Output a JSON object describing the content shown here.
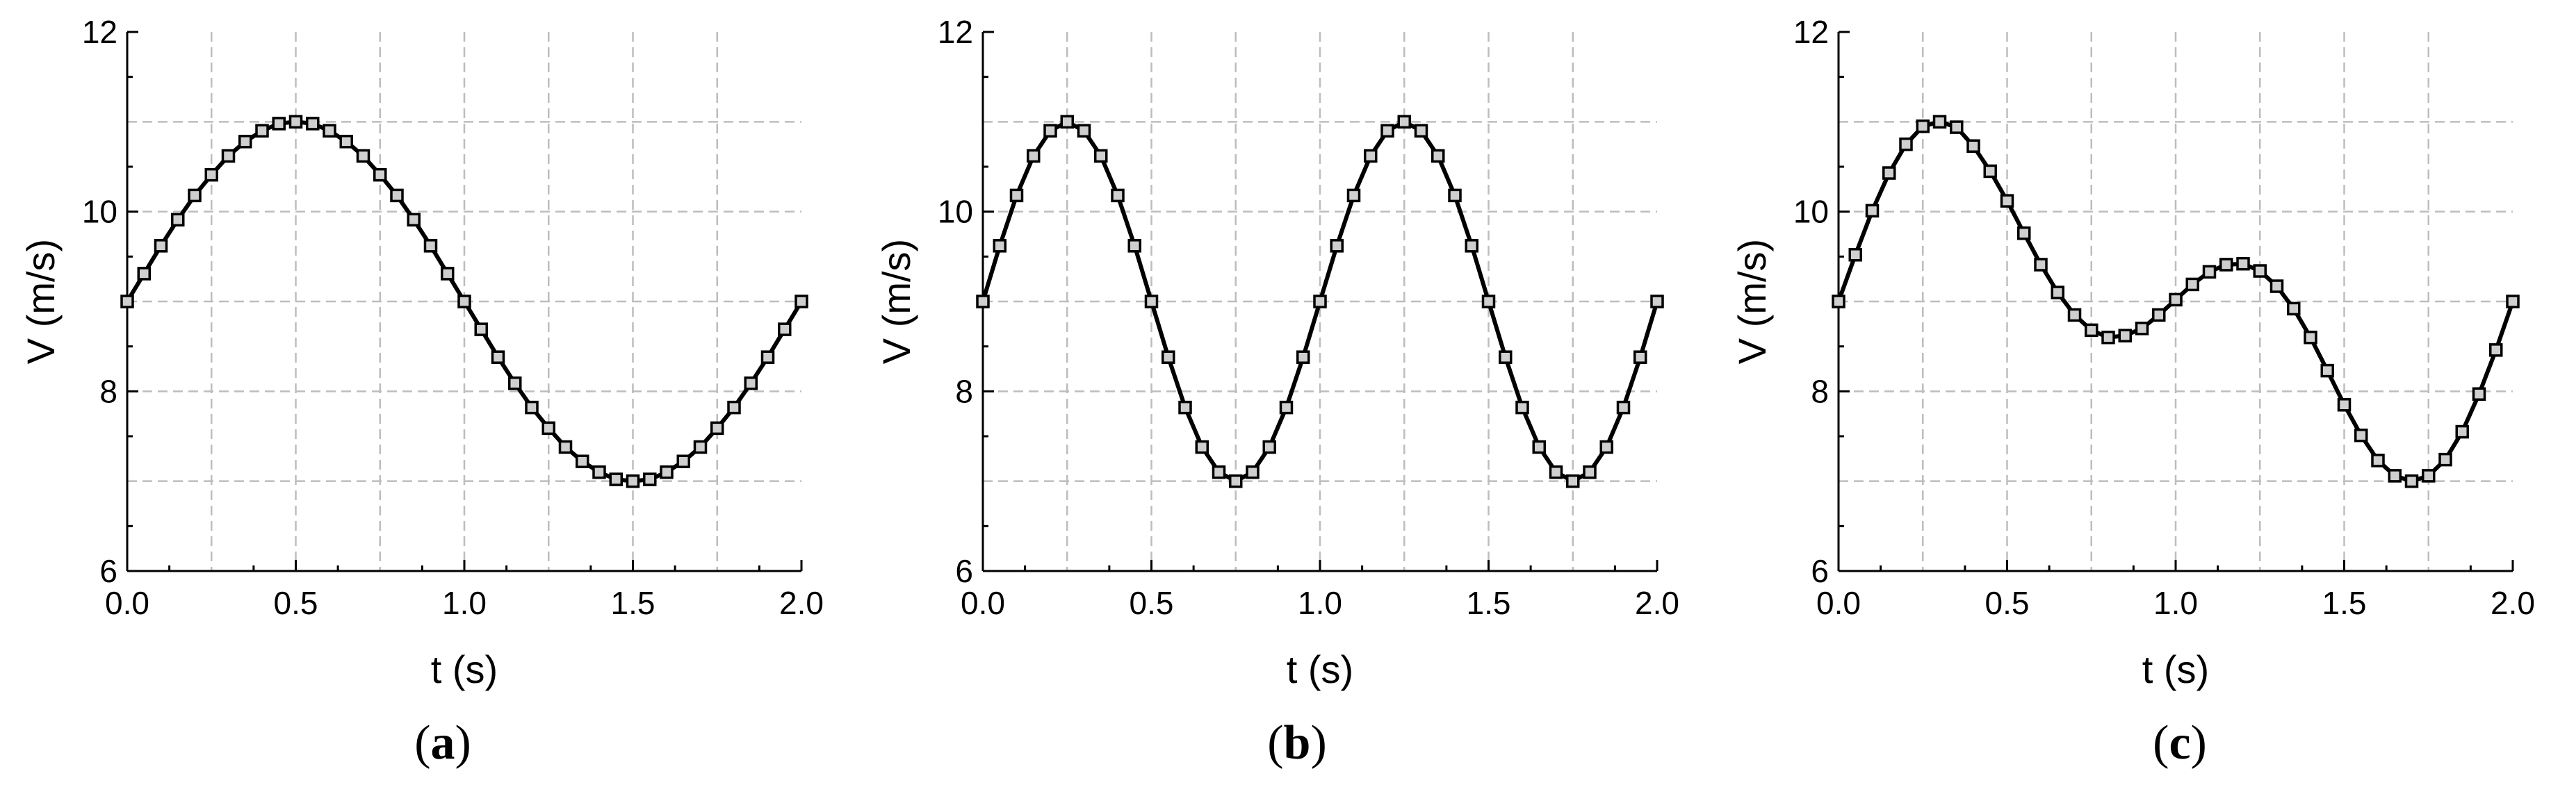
{
  "chart_data": [
    {
      "type": "line",
      "panel_label": "(a)",
      "panel_letter": "a",
      "xlabel": "t (s)",
      "ylabel": "V (m/s)",
      "xlim": [
        0.0,
        2.0
      ],
      "ylim": [
        6,
        12
      ],
      "xticks": [
        "0.0",
        "0.5",
        "1.0",
        "1.5",
        "2.0"
      ],
      "yticks": [
        "6",
        "8",
        "10",
        "12"
      ],
      "grid": true,
      "series": [
        {
          "marker": "square",
          "x": [
            0.0,
            0.05,
            0.1,
            0.15,
            0.2,
            0.25,
            0.3,
            0.35,
            0.4,
            0.45,
            0.5,
            0.55,
            0.6,
            0.65,
            0.7,
            0.75,
            0.8,
            0.85,
            0.9,
            0.95,
            1.0,
            1.05,
            1.1,
            1.15,
            1.2,
            1.25,
            1.3,
            1.35,
            1.4,
            1.45,
            1.5,
            1.55,
            1.6,
            1.65,
            1.7,
            1.75,
            1.8,
            1.85,
            1.9,
            1.95,
            2.0
          ],
          "y": [
            9.0,
            9.31,
            9.62,
            9.91,
            10.18,
            10.41,
            10.62,
            10.78,
            10.9,
            10.98,
            11.0,
            10.98,
            10.9,
            10.78,
            10.62,
            10.41,
            10.18,
            9.91,
            9.62,
            9.31,
            9.0,
            8.69,
            8.38,
            8.09,
            7.82,
            7.59,
            7.38,
            7.22,
            7.1,
            7.02,
            7.0,
            7.02,
            7.1,
            7.22,
            7.38,
            7.59,
            7.82,
            8.09,
            8.38,
            8.69,
            9.0
          ]
        }
      ]
    },
    {
      "type": "line",
      "panel_label": "(b)",
      "panel_letter": "b",
      "xlabel": "t (s)",
      "ylabel": "V (m/s)",
      "xlim": [
        0.0,
        2.0
      ],
      "ylim": [
        6,
        12
      ],
      "xticks": [
        "0.0",
        "0.5",
        "1.0",
        "1.5",
        "2.0"
      ],
      "yticks": [
        "6",
        "8",
        "10",
        "12"
      ],
      "grid": true,
      "series": [
        {
          "marker": "square",
          "x": [
            0.0,
            0.05,
            0.1,
            0.15,
            0.2,
            0.25,
            0.3,
            0.35,
            0.4,
            0.45,
            0.5,
            0.55,
            0.6,
            0.65,
            0.7,
            0.75,
            0.8,
            0.85,
            0.9,
            0.95,
            1.0,
            1.05,
            1.1,
            1.15,
            1.2,
            1.25,
            1.3,
            1.35,
            1.4,
            1.45,
            1.5,
            1.55,
            1.6,
            1.65,
            1.7,
            1.75,
            1.8,
            1.85,
            1.9,
            1.95,
            2.0
          ],
          "y": [
            9.0,
            9.62,
            10.18,
            10.62,
            10.9,
            11.0,
            10.9,
            10.62,
            10.18,
            9.62,
            9.0,
            8.38,
            7.82,
            7.38,
            7.1,
            7.0,
            7.1,
            7.38,
            7.82,
            8.38,
            9.0,
            9.62,
            10.18,
            10.62,
            10.9,
            11.0,
            10.9,
            10.62,
            10.18,
            9.62,
            9.0,
            8.38,
            7.82,
            7.38,
            7.1,
            7.0,
            7.1,
            7.38,
            7.82,
            8.38,
            9.0
          ]
        }
      ]
    },
    {
      "type": "line",
      "panel_label": "(c)",
      "panel_letter": "c",
      "xlabel": "t (s)",
      "ylabel": "V (m/s)",
      "xlim": [
        0.0,
        2.0
      ],
      "ylim": [
        6,
        12
      ],
      "xticks": [
        "0.0",
        "0.5",
        "1.0",
        "1.5",
        "2.0"
      ],
      "yticks": [
        "6",
        "8",
        "10",
        "12"
      ],
      "grid": true,
      "series": [
        {
          "marker": "square",
          "x": [
            0.0,
            0.05,
            0.1,
            0.15,
            0.2,
            0.25,
            0.3,
            0.35,
            0.4,
            0.45,
            0.5,
            0.55,
            0.6,
            0.65,
            0.7,
            0.75,
            0.8,
            0.85,
            0.9,
            0.95,
            1.0,
            1.05,
            1.1,
            1.15,
            1.2,
            1.25,
            1.3,
            1.35,
            1.4,
            1.45,
            1.5,
            1.55,
            1.6,
            1.65,
            1.7,
            1.75,
            1.8,
            1.85,
            1.9,
            1.95,
            2.0
          ],
          "y": [
            9.0,
            9.52,
            10.01,
            10.43,
            10.75,
            10.95,
            11.0,
            10.94,
            10.73,
            10.45,
            10.12,
            9.76,
            9.41,
            9.1,
            8.85,
            8.68,
            8.6,
            8.62,
            8.7,
            8.85,
            9.02,
            9.19,
            9.33,
            9.41,
            9.42,
            9.34,
            9.17,
            8.92,
            8.6,
            8.23,
            7.85,
            7.51,
            7.23,
            7.06,
            7.0,
            7.06,
            7.24,
            7.55,
            7.97,
            8.46,
            9.0
          ]
        }
      ]
    }
  ]
}
